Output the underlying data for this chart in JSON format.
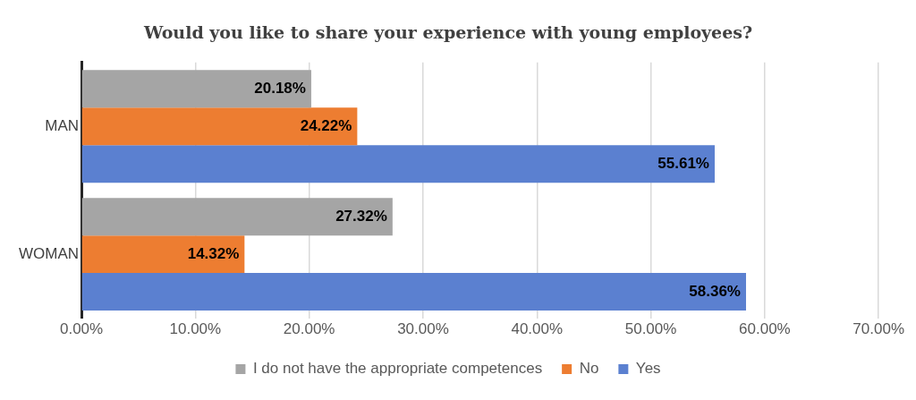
{
  "chart_data": {
    "type": "bar",
    "orientation": "horizontal",
    "title": "Would you like to share your experience with young employees?",
    "categories": [
      "MAN",
      "WOMAN"
    ],
    "series": [
      {
        "name": "I do not have the appropriate competences",
        "color": "#a5a5a5",
        "values": [
          20.18,
          27.32
        ],
        "value_labels": [
          "20.18%",
          "27.32%"
        ]
      },
      {
        "name": "No",
        "color": "#ed7d31",
        "values": [
          24.22,
          14.32
        ],
        "value_labels": [
          "24.22%",
          "14.32%"
        ]
      },
      {
        "name": "Yes",
        "color": "#5b80d0",
        "values": [
          55.61,
          58.36
        ],
        "value_labels": [
          "55.61%",
          "58.36%"
        ]
      }
    ],
    "xlim": [
      0,
      70
    ],
    "xticks": [
      {
        "value": 0,
        "label": "0.00%"
      },
      {
        "value": 10,
        "label": "10.00%"
      },
      {
        "value": 20,
        "label": "20.00%"
      },
      {
        "value": 30,
        "label": "30.00%"
      },
      {
        "value": 40,
        "label": "40.00%"
      },
      {
        "value": 50,
        "label": "50.00%"
      },
      {
        "value": 60,
        "label": "60.00%"
      },
      {
        "value": 70,
        "label": "70.00%"
      }
    ],
    "grid": "x",
    "legend": "bottom"
  }
}
